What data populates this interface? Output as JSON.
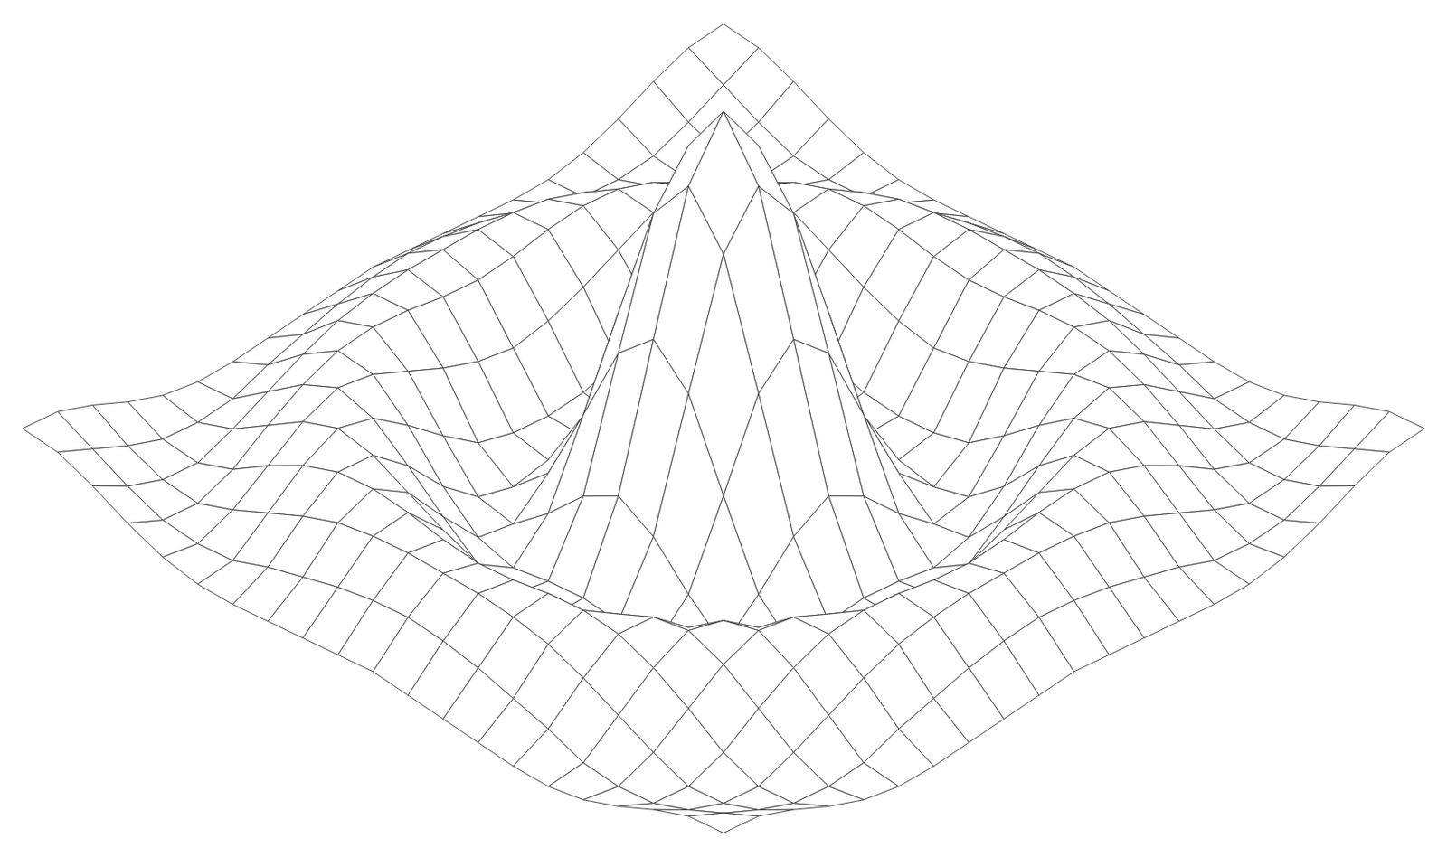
{
  "chart_data": {
    "type": "surface",
    "x": [
      -10,
      -9,
      -8,
      -7,
      -6,
      -5,
      -4,
      -3,
      -2,
      -1,
      0,
      1,
      2,
      3,
      4,
      5,
      6,
      7,
      8,
      9,
      10
    ],
    "y": [
      -10,
      -9,
      -8,
      -7,
      -6,
      -5,
      -4,
      -3,
      -2,
      -1,
      0,
      1,
      2,
      3,
      4,
      5,
      6,
      7,
      8,
      9,
      10
    ],
    "z": [
      [
        0.07,
        0.06,
        0.02,
        -0.03,
        -0.07,
        -0.09,
        -0.09,
        -0.08,
        -0.07,
        -0.06,
        -0.05,
        -0.06,
        -0.07,
        -0.08,
        -0.09,
        -0.09,
        -0.07,
        -0.03,
        0.02,
        0.06,
        0.07
      ],
      [
        0.06,
        0.01,
        -0.04,
        -0.08,
        -0.09,
        -0.08,
        -0.04,
        -0.01,
        0.02,
        0.04,
        0.05,
        0.04,
        0.02,
        -0.01,
        -0.04,
        -0.08,
        -0.09,
        -0.08,
        -0.04,
        0.01,
        0.06
      ],
      [
        0.02,
        -0.04,
        -0.08,
        -0.09,
        -0.05,
        0.0,
        0.05,
        0.09,
        0.11,
        0.12,
        0.12,
        0.12,
        0.11,
        0.09,
        0.05,
        0.0,
        -0.05,
        -0.09,
        -0.08,
        -0.04,
        0.02
      ],
      [
        -0.03,
        -0.08,
        -0.09,
        -0.05,
        0.02,
        0.08,
        0.12,
        0.13,
        0.12,
        0.1,
        0.09,
        0.1,
        0.12,
        0.13,
        0.12,
        0.08,
        0.02,
        -0.05,
        -0.09,
        -0.08,
        -0.03
      ],
      [
        -0.07,
        -0.09,
        -0.05,
        0.02,
        0.09,
        0.13,
        0.11,
        0.06,
        0.01,
        -0.03,
        -0.05,
        -0.03,
        0.01,
        0.06,
        0.11,
        0.13,
        0.09,
        0.02,
        -0.05,
        -0.09,
        -0.07
      ],
      [
        -0.09,
        -0.08,
        0.0,
        0.08,
        0.13,
        0.1,
        0.02,
        -0.07,
        -0.15,
        -0.18,
        -0.19,
        -0.18,
        -0.15,
        -0.07,
        0.02,
        0.1,
        0.13,
        0.08,
        0.0,
        -0.08,
        -0.09
      ],
      [
        -0.09,
        -0.04,
        0.05,
        0.12,
        0.11,
        0.02,
        -0.1,
        -0.19,
        -0.22,
        -0.2,
        -0.19,
        -0.2,
        -0.22,
        -0.19,
        -0.1,
        0.02,
        0.11,
        0.12,
        0.05,
        -0.04,
        -0.09
      ],
      [
        -0.08,
        -0.01,
        0.09,
        0.13,
        0.06,
        -0.07,
        -0.19,
        -0.21,
        -0.12,
        -0.01,
        0.05,
        -0.01,
        -0.12,
        -0.21,
        -0.19,
        -0.07,
        0.06,
        0.13,
        0.09,
        -0.01,
        -0.08
      ],
      [
        -0.07,
        0.02,
        0.11,
        0.12,
        0.01,
        -0.15,
        -0.22,
        -0.12,
        0.11,
        0.35,
        0.45,
        0.35,
        0.11,
        -0.12,
        -0.22,
        -0.15,
        0.01,
        0.12,
        0.11,
        0.02,
        -0.07
      ],
      [
        -0.06,
        0.04,
        0.12,
        0.1,
        -0.03,
        -0.18,
        -0.2,
        -0.01,
        0.35,
        0.7,
        0.84,
        0.7,
        0.35,
        -0.01,
        -0.2,
        -0.18,
        -0.03,
        0.1,
        0.12,
        0.04,
        -0.06
      ],
      [
        -0.05,
        0.05,
        0.12,
        0.09,
        -0.05,
        -0.19,
        -0.19,
        0.05,
        0.45,
        0.84,
        1,
        0.84,
        0.45,
        0.05,
        -0.19,
        -0.19,
        -0.05,
        0.09,
        0.12,
        0.05,
        -0.05
      ],
      [
        -0.06,
        0.04,
        0.12,
        0.1,
        -0.03,
        -0.18,
        -0.2,
        -0.01,
        0.35,
        0.7,
        0.84,
        0.7,
        0.35,
        -0.01,
        -0.2,
        -0.18,
        -0.03,
        0.1,
        0.12,
        0.04,
        -0.06
      ],
      [
        -0.07,
        0.02,
        0.11,
        0.12,
        0.01,
        -0.15,
        -0.22,
        -0.12,
        0.11,
        0.35,
        0.45,
        0.35,
        0.11,
        -0.12,
        -0.22,
        -0.15,
        0.01,
        0.12,
        0.11,
        0.02,
        -0.07
      ],
      [
        -0.08,
        -0.01,
        0.09,
        0.13,
        0.06,
        -0.07,
        -0.19,
        -0.21,
        -0.12,
        -0.01,
        0.05,
        -0.01,
        -0.12,
        -0.21,
        -0.19,
        -0.07,
        0.06,
        0.13,
        0.09,
        -0.01,
        -0.08
      ],
      [
        -0.09,
        -0.04,
        0.05,
        0.12,
        0.11,
        0.02,
        -0.1,
        -0.19,
        -0.22,
        -0.2,
        -0.19,
        -0.2,
        -0.22,
        -0.19,
        -0.1,
        0.02,
        0.11,
        0.12,
        0.05,
        -0.04,
        -0.09
      ],
      [
        -0.09,
        -0.08,
        0.0,
        0.08,
        0.13,
        0.1,
        0.02,
        -0.07,
        -0.15,
        -0.18,
        -0.19,
        -0.18,
        -0.15,
        -0.07,
        0.02,
        0.1,
        0.13,
        0.08,
        0.0,
        -0.08,
        -0.09
      ],
      [
        -0.07,
        -0.09,
        -0.05,
        0.02,
        0.09,
        0.13,
        0.11,
        0.06,
        0.01,
        -0.03,
        -0.05,
        -0.03,
        0.01,
        0.06,
        0.11,
        0.13,
        0.09,
        0.02,
        -0.05,
        -0.09,
        -0.07
      ],
      [
        -0.03,
        -0.08,
        -0.09,
        -0.05,
        0.02,
        0.08,
        0.12,
        0.13,
        0.12,
        0.1,
        0.09,
        0.1,
        0.12,
        0.13,
        0.12,
        0.08,
        0.02,
        -0.05,
        -0.09,
        -0.08,
        -0.03
      ],
      [
        0.02,
        -0.04,
        -0.08,
        -0.09,
        -0.05,
        0.0,
        0.05,
        0.09,
        0.11,
        0.12,
        0.12,
        0.12,
        0.11,
        0.09,
        0.05,
        0.0,
        -0.05,
        -0.09,
        -0.08,
        -0.04,
        0.02
      ],
      [
        0.06,
        0.01,
        -0.04,
        -0.08,
        -0.09,
        -0.08,
        -0.04,
        -0.01,
        0.02,
        0.04,
        0.05,
        0.04,
        0.02,
        -0.01,
        -0.04,
        -0.08,
        -0.09,
        -0.08,
        -0.04,
        0.01,
        0.06
      ],
      [
        0.07,
        0.06,
        0.02,
        -0.03,
        -0.07,
        -0.09,
        -0.09,
        -0.08,
        -0.07,
        -0.06,
        -0.05,
        -0.06,
        -0.07,
        -0.08,
        -0.09,
        -0.09,
        -0.07,
        -0.03,
        0.02,
        0.06,
        0.07
      ]
    ],
    "zlim": [
      -0.25,
      1
    ],
    "tick_labels": false,
    "color": "#444444"
  }
}
